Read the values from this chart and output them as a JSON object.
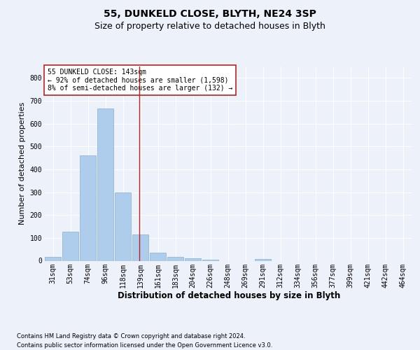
{
  "title1": "55, DUNKELD CLOSE, BLYTH, NE24 3SP",
  "title2": "Size of property relative to detached houses in Blyth",
  "xlabel": "Distribution of detached houses by size in Blyth",
  "ylabel": "Number of detached properties",
  "footnote1": "Contains HM Land Registry data © Crown copyright and database right 2024.",
  "footnote2": "Contains public sector information licensed under the Open Government Licence v3.0.",
  "bin_labels": [
    "31sqm",
    "53sqm",
    "74sqm",
    "96sqm",
    "118sqm",
    "139sqm",
    "161sqm",
    "183sqm",
    "204sqm",
    "226sqm",
    "248sqm",
    "269sqm",
    "291sqm",
    "312sqm",
    "334sqm",
    "356sqm",
    "377sqm",
    "399sqm",
    "421sqm",
    "442sqm",
    "464sqm"
  ],
  "bar_values": [
    17,
    127,
    460,
    667,
    300,
    115,
    36,
    16,
    11,
    6,
    0,
    0,
    9,
    0,
    0,
    0,
    0,
    0,
    0,
    0,
    0
  ],
  "bar_color": "#aeccec",
  "bar_edgecolor": "#8ab0d4",
  "vline_bin_index": 5,
  "vline_color": "#bb2222",
  "annotation_text": "55 DUNKELD CLOSE: 143sqm\n← 92% of detached houses are smaller (1,598)\n8% of semi-detached houses are larger (132) →",
  "annotation_box_facecolor": "#ffffff",
  "annotation_box_edgecolor": "#bb2222",
  "ylim": [
    0,
    850
  ],
  "yticks": [
    0,
    100,
    200,
    300,
    400,
    500,
    600,
    700,
    800
  ],
  "bg_color": "#edf1f9",
  "plot_bg_color": "#edf1f9",
  "grid_color": "#ffffff",
  "title1_fontsize": 10,
  "title2_fontsize": 9,
  "xlabel_fontsize": 8.5,
  "ylabel_fontsize": 8,
  "tick_fontsize": 7,
  "annotation_fontsize": 7,
  "footnote_fontsize": 6
}
